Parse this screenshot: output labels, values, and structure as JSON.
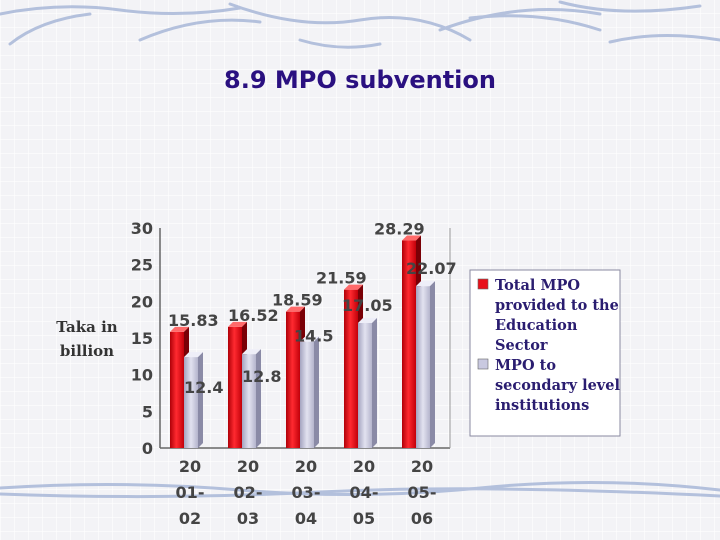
{
  "title": "8.9 MPO subvention",
  "colors": {
    "title": "#2a1080",
    "total_mpo": "#e8101a",
    "mpo_secondary": "#c9c9e0",
    "decoration": "#a9b8d8"
  },
  "chart_data": {
    "type": "bar",
    "title": "8.9 MPO subvention",
    "ylabel": [
      "Taka in",
      "billion"
    ],
    "xlabel": "",
    "ylim": [
      0,
      30
    ],
    "yticks": [
      "0",
      "5",
      "10",
      "15",
      "20",
      "25",
      "30"
    ],
    "categories": [
      [
        "20",
        "01-",
        "02"
      ],
      [
        "20",
        "02-",
        "03"
      ],
      [
        "20",
        "03-",
        "04"
      ],
      [
        "20",
        "04-",
        "05"
      ],
      [
        "20",
        "05-",
        "06"
      ]
    ],
    "series": [
      {
        "name": [
          "Total MPO",
          "provided to the",
          "Education",
          "Sector"
        ],
        "values": [
          15.83,
          16.52,
          18.59,
          21.59,
          28.29
        ],
        "labels": [
          "15.83",
          "16.52",
          "18.59",
          "21.59",
          "28.29"
        ]
      },
      {
        "name": [
          "MPO to",
          "secondary level",
          "institutions"
        ],
        "values": [
          12.4,
          12.8,
          14.5,
          17.05,
          22.07
        ],
        "labels": [
          "12.4",
          "12.8",
          "14.5",
          "17.05",
          "22.07"
        ]
      }
    ],
    "grid": false,
    "legend_position": "right"
  }
}
